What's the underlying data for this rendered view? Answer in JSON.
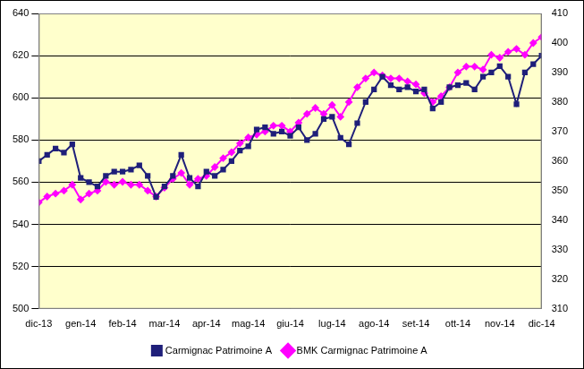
{
  "chart_data": {
    "type": "line",
    "categories": [
      "dic-13",
      null,
      null,
      null,
      null,
      "gen-14",
      null,
      null,
      null,
      null,
      "feb-14",
      null,
      null,
      null,
      null,
      "mar-14",
      null,
      null,
      null,
      null,
      "apr-14",
      null,
      null,
      null,
      null,
      "mag-14",
      null,
      null,
      null,
      null,
      "giu-14",
      null,
      null,
      null,
      null,
      "lug-14",
      null,
      null,
      null,
      null,
      "ago-14",
      null,
      null,
      null,
      null,
      "set-14",
      null,
      null,
      null,
      null,
      "ott-14",
      null,
      null,
      null,
      null,
      "nov-14",
      null,
      null,
      null,
      null,
      "dic-14"
    ],
    "series": [
      {
        "name": "Carmignac Patrimoine A",
        "color": "#1f1f7a",
        "marker": "square",
        "line_style": "solid",
        "values": [
          570,
          573,
          576,
          574,
          578,
          562,
          560,
          558,
          563,
          565,
          565,
          566,
          568,
          563,
          553,
          558,
          563,
          573,
          562,
          558,
          565,
          563,
          566,
          570,
          575,
          577,
          585,
          586,
          583,
          584,
          582,
          586,
          580,
          583,
          590,
          591,
          581,
          578,
          588,
          598,
          604,
          610,
          606,
          604,
          605,
          603,
          604,
          595,
          598,
          605,
          606,
          607,
          604,
          610,
          612,
          615,
          610,
          597,
          612,
          616,
          620
        ]
      },
      {
        "name": "BMK Carmignac Patrimoine A",
        "color": "#ff00ff",
        "marker": "diamond",
        "line_style": "solid",
        "axis": "y2",
        "values": [
          346,
          348,
          349,
          350,
          352,
          347,
          349,
          350,
          353,
          352,
          353,
          352,
          352,
          350,
          348,
          351,
          354,
          356,
          352,
          354,
          355,
          358,
          361,
          363,
          366,
          368,
          369,
          370,
          372,
          372,
          370,
          373,
          376,
          378,
          376,
          379,
          375,
          380,
          385,
          388,
          390,
          389,
          388,
          388,
          387,
          386,
          383,
          380,
          382,
          385,
          390,
          392,
          392,
          391,
          396,
          395,
          397,
          398,
          396,
          400,
          402
        ]
      }
    ],
    "ylim": [
      500,
      640
    ],
    "yticks": [
      500,
      520,
      540,
      560,
      580,
      600,
      620,
      640
    ],
    "y2lim": [
      310,
      410
    ],
    "y2ticks": [
      310,
      320,
      330,
      340,
      350,
      360,
      370,
      380,
      390,
      400,
      410
    ],
    "grid": true,
    "legend": "bottom"
  }
}
